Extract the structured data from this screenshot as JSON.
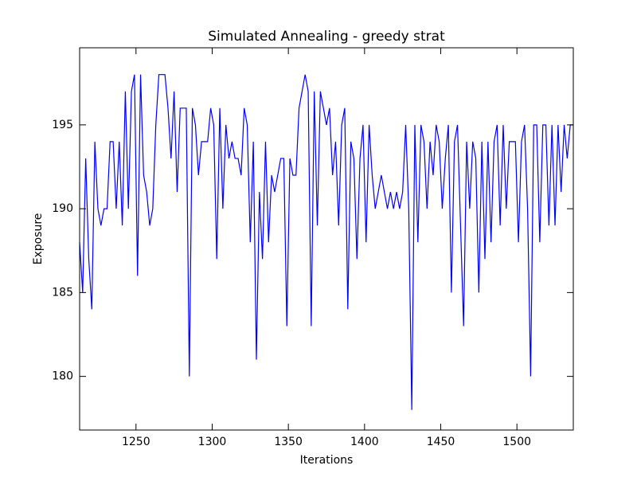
{
  "chart_data": {
    "type": "line",
    "title": "Simulated Annealing - greedy strat",
    "x_label": "Iterations",
    "y_label": "Exposure",
    "x": [
      1213,
      1215,
      1217,
      1219,
      1221,
      1223,
      1225,
      1227,
      1229,
      1231,
      1233,
      1235,
      1237,
      1239,
      1241,
      1243,
      1245,
      1247,
      1249,
      1251,
      1253,
      1255,
      1257,
      1259,
      1261,
      1263,
      1265,
      1267,
      1269,
      1271,
      1273,
      1275,
      1277,
      1279,
      1281,
      1283,
      1285,
      1287,
      1289,
      1291,
      1293,
      1295,
      1297,
      1299,
      1301,
      1303,
      1305,
      1307,
      1309,
      1311,
      1313,
      1315,
      1317,
      1319,
      1321,
      1323,
      1325,
      1327,
      1329,
      1331,
      1333,
      1335,
      1337,
      1339,
      1341,
      1343,
      1345,
      1347,
      1349,
      1351,
      1353,
      1355,
      1357,
      1359,
      1361,
      1363,
      1365,
      1367,
      1369,
      1371,
      1373,
      1375,
      1377,
      1379,
      1381,
      1383,
      1385,
      1387,
      1389,
      1391,
      1393,
      1395,
      1397,
      1399,
      1401,
      1403,
      1405,
      1407,
      1409,
      1411,
      1413,
      1415,
      1417,
      1419,
      1421,
      1423,
      1425,
      1427,
      1429,
      1431,
      1433,
      1435,
      1437,
      1439,
      1441,
      1443,
      1445,
      1447,
      1449,
      1451,
      1453,
      1455,
      1457,
      1459,
      1461,
      1463,
      1465,
      1467,
      1469,
      1471,
      1473,
      1475,
      1477,
      1479,
      1481,
      1483,
      1485,
      1487,
      1489,
      1491,
      1493,
      1495,
      1497,
      1499,
      1501,
      1503,
      1505,
      1507,
      1509,
      1511,
      1513,
      1515,
      1517,
      1519,
      1521,
      1523,
      1525,
      1527,
      1529,
      1531,
      1533,
      1535,
      1537
    ],
    "series": [
      {
        "name": "Exposure",
        "color": "#0000ff",
        "values": [
          188,
          185,
          193,
          187,
          184,
          194,
          190,
          189,
          190,
          190,
          194,
          194,
          190,
          194,
          189,
          197,
          190,
          197,
          198,
          186,
          198,
          192,
          191,
          189,
          190,
          195,
          198,
          198,
          198,
          196,
          193,
          197,
          191,
          196,
          196,
          196,
          180,
          196,
          195,
          192,
          194,
          194,
          194,
          196,
          195,
          187,
          196,
          190,
          195,
          193,
          194,
          193,
          193,
          192,
          196,
          195,
          188,
          194,
          181,
          191,
          187,
          194,
          188,
          192,
          191,
          192,
          193,
          193,
          183,
          193,
          192,
          192,
          196,
          197,
          198,
          197,
          183,
          197,
          189,
          197,
          196,
          195,
          196,
          192,
          194,
          189,
          195,
          196,
          184,
          194,
          193,
          187,
          193,
          195,
          188,
          195,
          192,
          190,
          191,
          192,
          191,
          190,
          191,
          190,
          191,
          190,
          191,
          195,
          190,
          178,
          195,
          188,
          195,
          194,
          190,
          194,
          192,
          195,
          194,
          190,
          193,
          195,
          185,
          194,
          195,
          189,
          183,
          194,
          190,
          194,
          193,
          185,
          194,
          187,
          194,
          188,
          194,
          195,
          189,
          195,
          190,
          194,
          194,
          194,
          188,
          194,
          195,
          190,
          180,
          195,
          195,
          188,
          195,
          195,
          189,
          195,
          189,
          195,
          191,
          195,
          193,
          195,
          195
        ]
      }
    ],
    "xlim": [
      1213,
      1537
    ],
    "ylim": [
      176.8,
      199.6
    ],
    "xticks": [
      1250,
      1300,
      1350,
      1400,
      1450,
      1500
    ],
    "yticks": [
      180,
      185,
      190,
      195
    ]
  }
}
